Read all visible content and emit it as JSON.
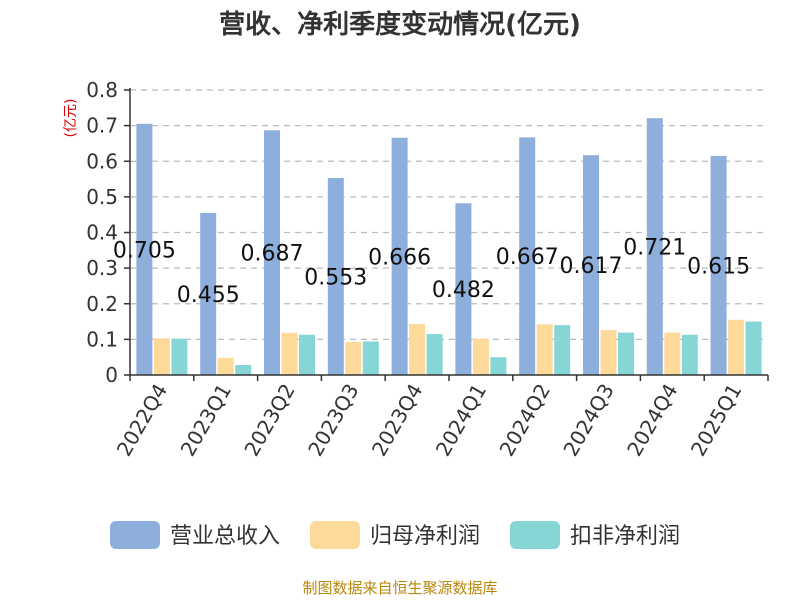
{
  "chart_data": {
    "type": "bar",
    "title": "营收、净利季度变动情况(亿元)",
    "unit_label": "(亿元)",
    "categories": [
      "2022Q4",
      "2023Q1",
      "2023Q2",
      "2023Q3",
      "2023Q4",
      "2024Q1",
      "2024Q2",
      "2024Q3",
      "2024Q4",
      "2025Q1"
    ],
    "series": [
      {
        "name": "营业总收入",
        "color": "#8eaedc",
        "values": [
          0.705,
          0.455,
          0.687,
          0.553,
          0.666,
          0.482,
          0.667,
          0.617,
          0.721,
          0.615
        ],
        "data_labels": [
          "0.705",
          "0.455",
          "0.687",
          "0.553",
          "0.666",
          "0.482",
          "0.667",
          "0.617",
          "0.721",
          "0.615"
        ]
      },
      {
        "name": "归母净利润",
        "color": "#fdd99a",
        "values": [
          0.103,
          0.048,
          0.118,
          0.093,
          0.143,
          0.102,
          0.142,
          0.126,
          0.119,
          0.155
        ]
      },
      {
        "name": "扣非净利润",
        "color": "#86d6d6",
        "values": [
          0.102,
          0.028,
          0.113,
          0.094,
          0.115,
          0.05,
          0.14,
          0.119,
          0.113,
          0.15
        ]
      }
    ],
    "ylim": [
      0,
      0.8
    ],
    "yticks": [
      "0",
      "0.1",
      "0.2",
      "0.3",
      "0.4",
      "0.5",
      "0.6",
      "0.7",
      "0.8"
    ],
    "grid": true,
    "legend_position": "bottom",
    "source": "制图数据来自恒生聚源数据库"
  }
}
